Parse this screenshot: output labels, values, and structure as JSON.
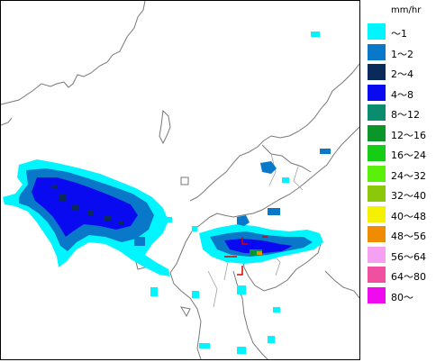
{
  "legend": {
    "unit": "mm/hr",
    "items": [
      {
        "label": "〜1",
        "color": "#00f5ff"
      },
      {
        "label": "1〜2",
        "color": "#0a78c8"
      },
      {
        "label": "2〜4",
        "color": "#0a2a5a"
      },
      {
        "label": "4〜8",
        "color": "#0a0af0"
      },
      {
        "label": "8〜12",
        "color": "#0a8c6e"
      },
      {
        "label": "12〜16",
        "color": "#0a9628"
      },
      {
        "label": "16〜24",
        "color": "#14cd14"
      },
      {
        "label": "24〜32",
        "color": "#5af00a"
      },
      {
        "label": "32〜40",
        "color": "#8cc80a"
      },
      {
        "label": "40〜48",
        "color": "#f5f000"
      },
      {
        "label": "48〜56",
        "color": "#f08c00"
      },
      {
        "label": "56〜64",
        "color": "#f5a0f0"
      },
      {
        "label": "64〜80",
        "color": "#f050a0"
      },
      {
        "label": "80〜",
        "color": "#f00af0"
      }
    ]
  },
  "colors": {
    "coastline": "#787878",
    "rain_light": "#00f5ff",
    "rain_mid": "#0a78c8",
    "rain_dark": "#0a2a5a",
    "rain_heavy": "#0a0af0",
    "rain_green": "#0a9628",
    "rain_orange": "#f08c00",
    "marker_red": "#e00000"
  }
}
